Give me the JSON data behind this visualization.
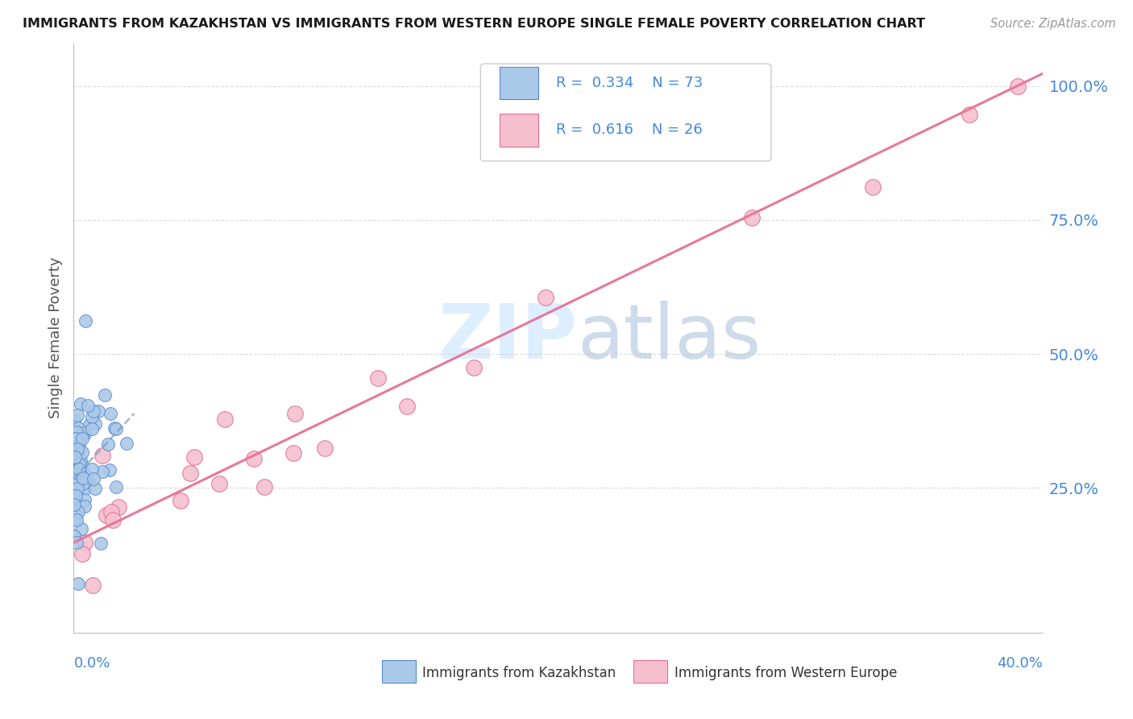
{
  "title": "IMMIGRANTS FROM KAZAKHSTAN VS IMMIGRANTS FROM WESTERN EUROPE SINGLE FEMALE POVERTY CORRELATION CHART",
  "source": "Source: ZipAtlas.com",
  "ylabel": "Single Female Poverty",
  "ytick_labels": [
    "100.0%",
    "75.0%",
    "50.0%",
    "25.0%"
  ],
  "ytick_vals": [
    1.0,
    0.75,
    0.5,
    0.25
  ],
  "xlim": [
    0.0,
    0.4
  ],
  "ylim": [
    -0.02,
    1.08
  ],
  "kaz_color": "#aac8e8",
  "kaz_edge_color": "#5588cc",
  "we_color": "#f5bfcf",
  "we_edge_color": "#e07090",
  "kaz_line_color": "#7799cc",
  "we_line_color": "#e87898",
  "title_color": "#1a1a1a",
  "axis_label_color": "#4488dd",
  "watermark_color": "#ddeeff",
  "grid_color": "#cccccc",
  "bg_color": "#ffffff",
  "legend_bg": "#ffffff",
  "legend_border": "#cccccc",
  "R_kaz": 0.334,
  "N_kaz": 73,
  "R_we": 0.616,
  "N_we": 26
}
